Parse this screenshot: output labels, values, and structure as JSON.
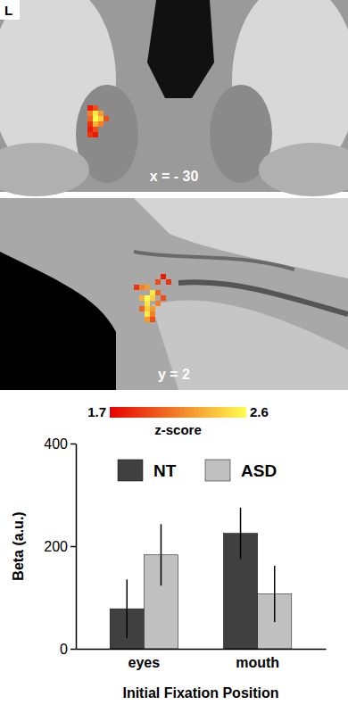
{
  "brain_panels": [
    {
      "corner_label": "L",
      "slice_label": "x = - 30"
    },
    {
      "slice_label": "y = 2"
    }
  ],
  "colorbar": {
    "range": [
      1.7,
      2.6
    ],
    "ticks": [
      1.7,
      2.6
    ],
    "label": "z-score",
    "colors": [
      "#e60000",
      "#ffff50"
    ]
  },
  "chart_data": {
    "type": "bar",
    "categories": [
      "eyes",
      "mouth"
    ],
    "series": [
      {
        "name": "NT",
        "color": "#404040",
        "values": [
          78,
          225
        ],
        "errors": [
          57,
          50
        ]
      },
      {
        "name": "ASD",
        "color": "#c0c0c0",
        "values": [
          183,
          107
        ],
        "errors": [
          60,
          55
        ]
      }
    ],
    "xlabel": "Initial Fixation Position",
    "ylabel": "Beta (a.u.)",
    "ylim": [
      0,
      400
    ],
    "yticks": [
      0,
      200,
      400
    ],
    "legend": "top"
  }
}
